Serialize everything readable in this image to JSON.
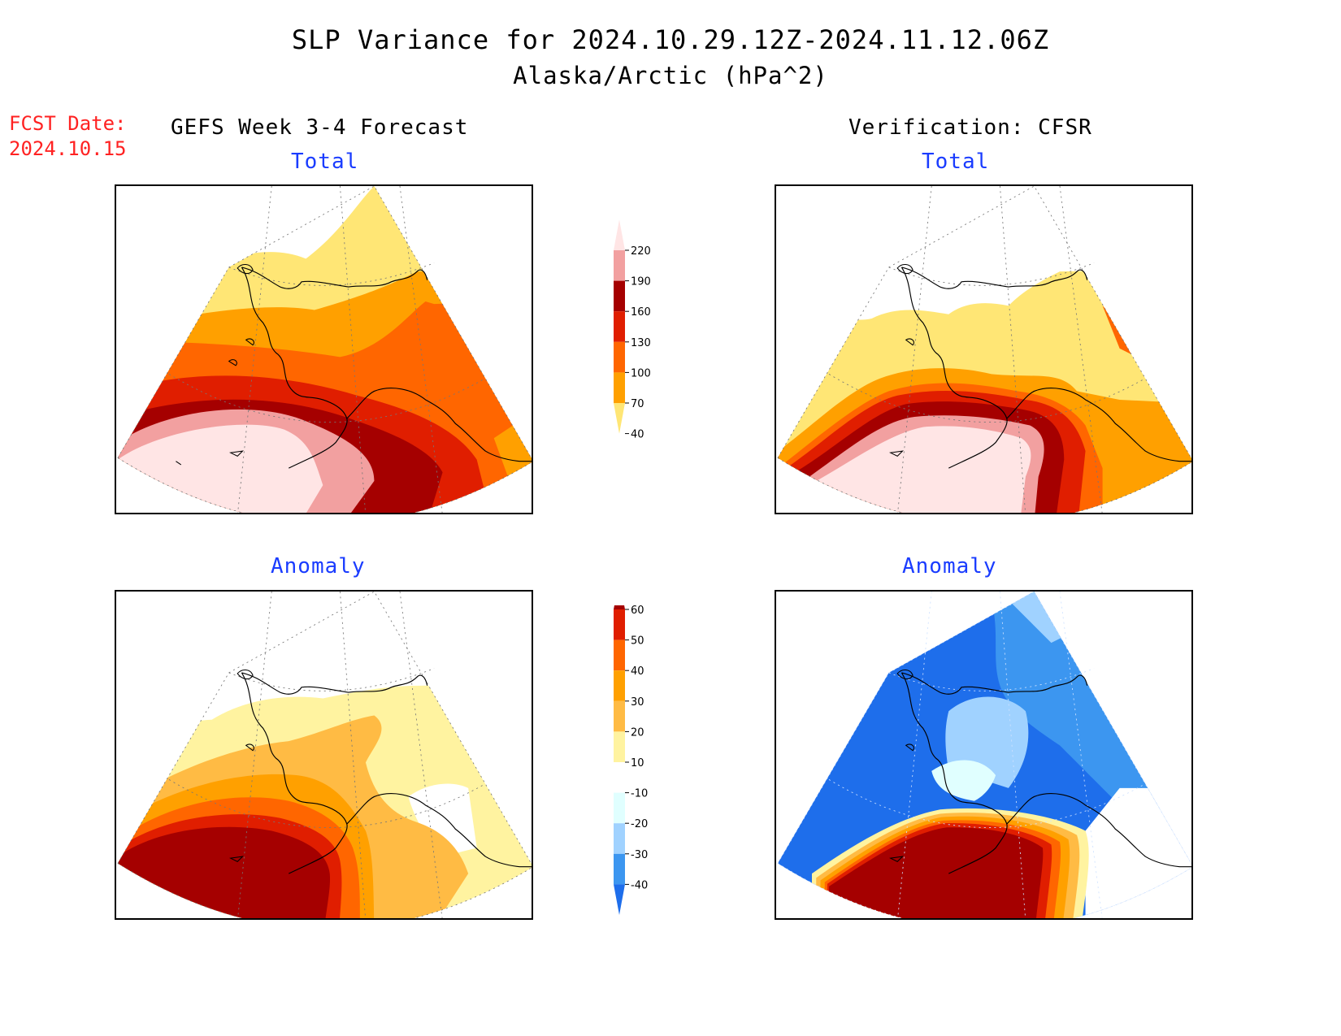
{
  "title": {
    "line1": "SLP Variance for 2024.10.29.12Z-2024.11.12.06Z",
    "line2": "Alaska/Arctic (hPa^2)"
  },
  "forecast_date": {
    "label": "FCST Date:",
    "value": "2024.10.15"
  },
  "columns": {
    "left": "GEFS Week 3-4 Forecast",
    "right": "Verification: CFSR"
  },
  "panels": {
    "fcst_total": "Total",
    "verif_total": "Total",
    "fcst_anom": "Anomaly",
    "verif_anom": "Anomaly"
  },
  "colorbars": {
    "total": {
      "levels": [
        "220",
        "190",
        "160",
        "130",
        "100",
        "70",
        "40"
      ],
      "colors": [
        "#ffe5e5",
        "#f2a0a0",
        "#a50000",
        "#e01e00",
        "#ff6600",
        "#ffa000",
        "#ffe675"
      ]
    },
    "anomaly": {
      "levels": [
        "60",
        "50",
        "40",
        "30",
        "20",
        "10",
        "-10",
        "-20",
        "-30",
        "-40"
      ],
      "colors": [
        "#a50000",
        "#e01e00",
        "#ff6600",
        "#ffa000",
        "#ffbb44",
        "#fff3a0",
        "#ffffff",
        "#e0ffff",
        "#a0d2ff",
        "#3c96f0",
        "#1e6eeb"
      ]
    }
  },
  "palette": {
    "total_colors": [
      "#ffe675",
      "#ffa000",
      "#ff6600",
      "#e01e00",
      "#a50000",
      "#f2a0a0",
      "#ffe5e5"
    ],
    "anomaly_warm": [
      "#fff3a0",
      "#ffbb44",
      "#ffa000",
      "#ff6600",
      "#e01e00",
      "#a50000"
    ],
    "anomaly_cool": [
      "#e0ffff",
      "#a0d2ff",
      "#3c96f0",
      "#1e6eeb"
    ],
    "title_text": "#000000",
    "date_text": "#ff2222",
    "subtitle_text": "#1a3cff"
  }
}
